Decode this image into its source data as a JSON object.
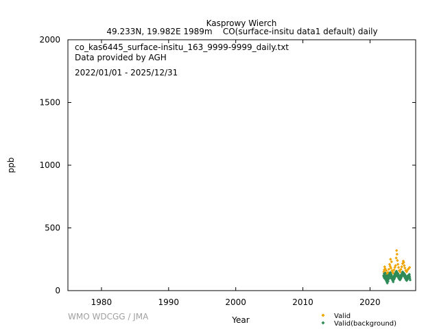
{
  "chart_data": {
    "type": "scatter",
    "title": "Kasprowy Wierch",
    "subtitle": "49.233N, 19.982E 1989m    CO(surface-insitu data1 default) daily",
    "xlabel": "Year",
    "ylabel": "ppb",
    "xlim": [
      1975.0,
      2026.8
    ],
    "ylim": [
      0,
      2000
    ],
    "xticks": [
      1980,
      1990,
      2000,
      2010,
      2020
    ],
    "yticks": [
      0,
      500,
      1000,
      1500,
      2000
    ],
    "grid": false,
    "legend_position": "bottom-right",
    "annotations": [
      "co_kas6445_surface-insitu_163_9999-9999_daily.txt",
      "Data provided by AGH",
      "2022/01/01 - 2025/12/31"
    ],
    "credit": "WMO WDCGG / JMA",
    "series": [
      {
        "name": "Valid",
        "color": "#f0a400",
        "points": [
          [
            2022.05,
            150
          ],
          [
            2022.12,
            165
          ],
          [
            2022.18,
            190
          ],
          [
            2022.25,
            175
          ],
          [
            2022.33,
            140
          ],
          [
            2022.42,
            160
          ],
          [
            2022.55,
            130
          ],
          [
            2022.68,
            145
          ],
          [
            2022.8,
            170
          ],
          [
            2022.92,
            210
          ],
          [
            2023.0,
            195
          ],
          [
            2023.05,
            250
          ],
          [
            2023.12,
            180
          ],
          [
            2023.2,
            230
          ],
          [
            2023.28,
            160
          ],
          [
            2023.35,
            150
          ],
          [
            2023.45,
            140
          ],
          [
            2023.58,
            165
          ],
          [
            2023.7,
            185
          ],
          [
            2023.8,
            200
          ],
          [
            2023.9,
            260
          ],
          [
            2023.96,
            320
          ],
          [
            2024.02,
            290
          ],
          [
            2024.08,
            240
          ],
          [
            2024.15,
            210
          ],
          [
            2024.25,
            185
          ],
          [
            2024.35,
            160
          ],
          [
            2024.48,
            150
          ],
          [
            2024.6,
            170
          ],
          [
            2024.72,
            190
          ],
          [
            2024.85,
            215
          ],
          [
            2024.95,
            235
          ],
          [
            2025.02,
            225
          ],
          [
            2025.1,
            200
          ],
          [
            2025.2,
            180
          ],
          [
            2025.32,
            160
          ],
          [
            2025.45,
            150
          ],
          [
            2025.6,
            165
          ],
          [
            2025.75,
            175
          ],
          [
            2025.9,
            185
          ]
        ]
      },
      {
        "name": "Valid(background)",
        "color": "#2e8b57",
        "points": [
          [
            2022.02,
            120
          ],
          [
            2022.06,
            110
          ],
          [
            2022.1,
            135
          ],
          [
            2022.14,
            100
          ],
          [
            2022.18,
            125
          ],
          [
            2022.22,
            95
          ],
          [
            2022.26,
            140
          ],
          [
            2022.3,
            115
          ],
          [
            2022.34,
            90
          ],
          [
            2022.38,
            105
          ],
          [
            2022.42,
            80
          ],
          [
            2022.46,
            120
          ],
          [
            2022.5,
            70
          ],
          [
            2022.54,
            95
          ],
          [
            2022.58,
            60
          ],
          [
            2022.62,
            85
          ],
          [
            2022.66,
            110
          ],
          [
            2022.7,
            75
          ],
          [
            2022.74,
            100
          ],
          [
            2022.78,
            125
          ],
          [
            2022.82,
            95
          ],
          [
            2022.86,
            130
          ],
          [
            2022.9,
            115
          ],
          [
            2022.94,
            140
          ],
          [
            2022.98,
            120
          ],
          [
            2023.02,
            145
          ],
          [
            2023.06,
            110
          ],
          [
            2023.1,
            135
          ],
          [
            2023.14,
            100
          ],
          [
            2023.18,
            125
          ],
          [
            2023.22,
            95
          ],
          [
            2023.26,
            115
          ],
          [
            2023.3,
            90
          ],
          [
            2023.34,
            105
          ],
          [
            2023.38,
            80
          ],
          [
            2023.42,
            95
          ],
          [
            2023.46,
            70
          ],
          [
            2023.5,
            85
          ],
          [
            2023.54,
            110
          ],
          [
            2023.58,
            90
          ],
          [
            2023.62,
            120
          ],
          [
            2023.66,
            100
          ],
          [
            2023.7,
            130
          ],
          [
            2023.74,
            110
          ],
          [
            2023.78,
            140
          ],
          [
            2023.82,
            120
          ],
          [
            2023.86,
            150
          ],
          [
            2023.9,
            130
          ],
          [
            2023.94,
            155
          ],
          [
            2023.98,
            125
          ],
          [
            2024.02,
            145
          ],
          [
            2024.06,
            115
          ],
          [
            2024.1,
            140
          ],
          [
            2024.14,
            120
          ],
          [
            2024.18,
            135
          ],
          [
            2024.22,
            105
          ],
          [
            2024.26,
            125
          ],
          [
            2024.3,
            95
          ],
          [
            2024.34,
            115
          ],
          [
            2024.38,
            90
          ],
          [
            2024.42,
            105
          ],
          [
            2024.46,
            85
          ],
          [
            2024.5,
            100
          ],
          [
            2024.54,
            120
          ],
          [
            2024.58,
            95
          ],
          [
            2024.62,
            125
          ],
          [
            2024.66,
            105
          ],
          [
            2024.7,
            130
          ],
          [
            2024.74,
            115
          ],
          [
            2024.78,
            140
          ],
          [
            2024.82,
            125
          ],
          [
            2024.86,
            150
          ],
          [
            2024.9,
            135
          ],
          [
            2024.94,
            145
          ],
          [
            2024.98,
            125
          ],
          [
            2025.02,
            140
          ],
          [
            2025.06,
            115
          ],
          [
            2025.1,
            135
          ],
          [
            2025.14,
            110
          ],
          [
            2025.18,
            130
          ],
          [
            2025.22,
            100
          ],
          [
            2025.26,
            120
          ],
          [
            2025.3,
            95
          ],
          [
            2025.34,
            110
          ],
          [
            2025.38,
            85
          ],
          [
            2025.42,
            100
          ],
          [
            2025.46,
            80
          ],
          [
            2025.5,
            95
          ],
          [
            2025.54,
            115
          ],
          [
            2025.58,
            90
          ],
          [
            2025.62,
            110
          ],
          [
            2025.66,
            95
          ],
          [
            2025.7,
            120
          ],
          [
            2025.74,
            105
          ],
          [
            2025.78,
            125
          ],
          [
            2025.82,
            110
          ],
          [
            2025.86,
            130
          ],
          [
            2025.9,
            115
          ],
          [
            2025.94,
            100
          ],
          [
            2025.98,
            85
          ]
        ]
      }
    ]
  }
}
